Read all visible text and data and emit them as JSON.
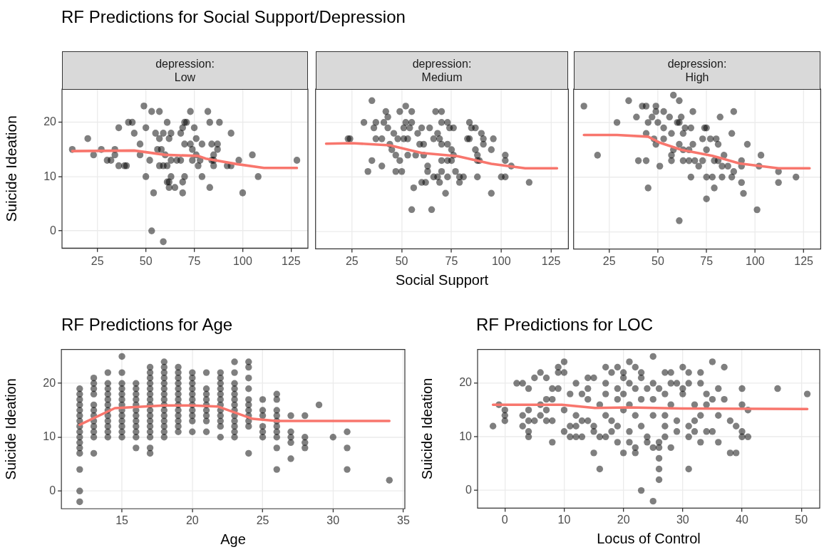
{
  "chart_data": [
    {
      "type": "scatter",
      "title": "RF Predictions for Social Support/Depression",
      "subtitle": "depression:\nLow",
      "ylabel": "Suicide Ideation",
      "xlim": [
        6.7,
        133.7
      ],
      "xticks": [
        25,
        50,
        75,
        100,
        125
      ],
      "ylim": [
        -3.2,
        26.1
      ],
      "yticks": [
        0,
        10,
        20
      ],
      "grid": true,
      "series": [
        {
          "type": "scatter",
          "marker": "circle",
          "color": "#000000",
          "x": [
            12,
            20,
            23,
            27,
            30,
            32,
            34,
            34,
            36,
            36,
            39,
            40,
            41,
            43,
            44,
            47,
            47,
            49,
            50,
            50,
            53,
            57,
            52,
            54,
            53,
            59,
            55,
            57,
            59,
            61,
            62,
            63,
            57,
            59,
            61,
            61,
            62,
            63,
            62,
            65,
            56,
            58,
            60,
            63,
            66,
            69,
            70,
            71,
            68,
            69,
            69,
            70,
            73,
            75,
            73,
            74,
            76,
            76,
            77,
            74,
            82,
            83,
            79,
            79,
            83,
            84,
            87,
            87,
            85,
            84,
            85,
            88,
            94,
            92,
            94,
            98,
            100,
            105,
            108,
            128,
            85,
            78,
            68,
            70
          ],
          "values": [
            15,
            17,
            14,
            15,
            13,
            13,
            15,
            14,
            19,
            12,
            12,
            12,
            20,
            20,
            18,
            14,
            16,
            23,
            19,
            10,
            22,
            22,
            13,
            7,
            0,
            -2,
            18,
            17,
            18,
            20,
            17,
            18,
            12,
            12,
            12,
            9,
            9,
            10,
            8,
            8,
            15,
            15,
            14,
            13,
            13,
            19,
            20,
            20,
            18,
            9,
            7,
            10,
            22,
            19,
            16,
            15,
            14,
            17,
            12,
            13,
            22,
            20,
            16,
            10,
            8,
            16,
            16,
            15,
            14,
            13,
            12,
            20,
            18,
            12,
            12,
            13,
            7,
            14,
            10,
            13,
            13,
            13,
            13,
            16
          ]
        },
        {
          "type": "line",
          "color": "#f8766d",
          "x": [
            12,
            44,
            50,
            60,
            77,
            81,
            97,
            111,
            128
          ],
          "values": [
            14.7,
            14.8,
            14.5,
            14,
            13.8,
            13.3,
            12.3,
            11.6,
            11.6
          ]
        }
      ]
    },
    {
      "type": "scatter",
      "subtitle": "depression:\nMedium",
      "xlabel": "Social Support",
      "xlim": [
        6.7,
        133.7
      ],
      "xticks": [
        25,
        50,
        75,
        100,
        125
      ],
      "ylim": [
        -3.2,
        26.1
      ],
      "yticks": [
        0,
        10,
        20
      ],
      "tick_labels": "x",
      "grid": true,
      "series": [
        {
          "type": "scatter",
          "marker": "circle",
          "color": "#000000",
          "x": [
            35,
            52,
            42,
            49,
            55,
            67,
            70,
            31,
            37,
            41,
            43,
            36,
            43,
            46,
            52,
            55,
            51,
            54,
            60,
            58,
            24,
            23,
            37,
            40,
            48,
            51,
            53,
            44,
            45,
            47,
            59,
            61,
            53,
            57,
            61,
            35,
            40,
            33,
            47,
            50,
            49,
            64,
            68,
            66,
            70,
            73,
            76,
            74,
            69,
            70,
            73,
            75,
            76,
            75,
            73,
            70,
            63,
            63,
            66,
            68,
            69,
            70,
            73,
            72,
            60,
            62,
            56,
            55,
            65,
            79,
            77,
            79,
            81,
            84,
            87,
            85,
            83,
            84,
            90,
            91,
            91,
            87,
            88,
            88,
            89,
            88,
            96,
            95,
            95,
            102,
            102,
            100,
            102,
            105,
            114
          ],
          "values": [
            24,
            23,
            22,
            22,
            22,
            22,
            22,
            20,
            20,
            20,
            21,
            19,
            19,
            18,
            20,
            20,
            19,
            19,
            19,
            18,
            17,
            17,
            17,
            17,
            17,
            17,
            17,
            16,
            15,
            14,
            16,
            16,
            14,
            14,
            14,
            13,
            12,
            11,
            11,
            11,
            13,
            19,
            18,
            17,
            20,
            20,
            19,
            19,
            17,
            16,
            16,
            15,
            14,
            13,
            13,
            13,
            12,
            11,
            10,
            10,
            9,
            11,
            10,
            7,
            9,
            9,
            8,
            4,
            4,
            9,
            11,
            10,
            10,
            20,
            19,
            19,
            17,
            17,
            18,
            17,
            16,
            15,
            14,
            13,
            13,
            10,
            17,
            15,
            7,
            14,
            13,
            10,
            10,
            12,
            9
          ]
        },
        {
          "type": "line",
          "color": "#f8766d",
          "x": [
            12,
            25,
            44,
            60,
            78,
            95,
            112,
            128
          ],
          "values": [
            16.1,
            16.2,
            15.8,
            14.4,
            13.8,
            12.4,
            11.6,
            11.6
          ]
        }
      ]
    },
    {
      "type": "scatter",
      "subtitle": "depression:\nHigh",
      "xlim": [
        6.7,
        133.7
      ],
      "xticks": [
        25,
        50,
        75,
        100,
        125
      ],
      "ylim": [
        -3.2,
        26.1
      ],
      "yticks": [
        0,
        10,
        20
      ],
      "tick_labels": "x",
      "grid": true,
      "series": [
        {
          "type": "scatter",
          "marker": "circle",
          "color": "#000000",
          "x": [
            12,
            35,
            58,
            61,
            42,
            44,
            49,
            49,
            53,
            68,
            89,
            39,
            47,
            56,
            62,
            82,
            29,
            45,
            50,
            60,
            61,
            53,
            64,
            67,
            74,
            75,
            44,
            57,
            63,
            88,
            48,
            53,
            73,
            77,
            80,
            49,
            61,
            68,
            81,
            96,
            58,
            63,
            75,
            66,
            19,
            57,
            84,
            103,
            40,
            44,
            57,
            63,
            66,
            69,
            73,
            79,
            81,
            93,
            51,
            71,
            83,
            86,
            93,
            102,
            89,
            112,
            67,
            75,
            78,
            83,
            88,
            121,
            93,
            112,
            45,
            79,
            94,
            75,
            101,
            61
          ],
          "values": [
            23,
            24,
            25,
            24,
            23,
            23,
            23,
            22,
            22,
            22,
            22,
            21,
            21,
            21,
            21,
            21,
            20,
            20,
            20,
            20,
            20,
            19,
            19,
            19,
            19,
            19,
            18,
            18,
            18,
            18,
            17,
            17,
            17,
            17,
            17,
            16,
            16,
            16,
            16,
            16,
            15,
            15,
            15,
            15,
            14,
            14,
            14,
            14,
            13,
            13,
            13,
            13,
            13,
            13,
            13,
            13,
            13,
            13,
            12,
            12,
            12,
            12,
            12,
            12,
            11,
            11,
            10,
            10,
            10,
            10,
            10,
            10,
            9,
            9,
            8,
            8,
            7,
            6,
            4,
            2
          ]
        },
        {
          "type": "line",
          "color": "#f8766d",
          "x": [
            12,
            29,
            45,
            51,
            62,
            78,
            92,
            112,
            128
          ],
          "values": [
            17.7,
            17.7,
            17.4,
            16.3,
            15,
            13.9,
            12.5,
            11.6,
            11.6
          ]
        }
      ]
    },
    {
      "type": "scatter",
      "title": "RF Predictions for Age",
      "xlabel": "Age",
      "ylabel": "Suicide Ideation",
      "xlim": [
        10.7,
        35.1
      ],
      "xticks": [
        15,
        20,
        25,
        30,
        35
      ],
      "ylim": [
        -3.3,
        26.3
      ],
      "yticks": [
        0,
        10,
        20
      ],
      "grid": true,
      "series": [
        {
          "type": "scatter",
          "marker": "circle",
          "color": "#000000",
          "x": [
            12,
            12,
            12,
            12,
            12,
            12,
            12,
            12,
            12,
            12,
            12,
            12,
            12,
            12,
            12,
            12,
            13,
            13,
            13,
            13,
            13,
            13,
            13,
            13,
            13,
            13,
            13,
            13,
            14,
            14,
            14,
            14,
            14,
            14,
            14,
            14,
            14,
            14,
            14,
            14,
            15,
            15,
            15,
            15,
            15,
            15,
            15,
            15,
            15,
            15,
            15,
            15,
            15,
            16,
            16,
            16,
            16,
            16,
            16,
            16,
            16,
            16,
            16,
            16,
            16,
            17,
            17,
            17,
            17,
            17,
            17,
            17,
            17,
            17,
            17,
            17,
            17,
            17,
            17,
            17,
            17,
            18,
            18,
            18,
            18,
            18,
            18,
            18,
            18,
            18,
            18,
            18,
            18,
            18,
            18,
            18,
            19,
            19,
            19,
            19,
            19,
            19,
            19,
            19,
            19,
            19,
            19,
            19,
            19,
            20,
            20,
            20,
            20,
            20,
            20,
            20,
            20,
            20,
            20,
            20,
            21,
            21,
            21,
            21,
            21,
            21,
            21,
            21,
            21,
            22,
            22,
            22,
            22,
            22,
            22,
            22,
            22,
            22,
            22,
            22,
            22,
            23,
            23,
            23,
            23,
            23,
            23,
            23,
            23,
            23,
            23,
            23,
            23,
            23,
            24,
            24,
            24,
            24,
            24,
            24,
            24,
            24,
            24,
            24,
            24,
            25,
            25,
            25,
            25,
            25,
            25,
            26,
            26,
            26,
            26,
            26,
            26,
            26,
            26,
            26,
            26,
            27,
            27,
            27,
            27,
            27,
            28,
            28,
            28,
            28,
            29,
            30,
            31,
            31,
            31,
            34
          ],
          "values": [
            19,
            18,
            17,
            16,
            15,
            14,
            13,
            12,
            11,
            10,
            9,
            8,
            7,
            4,
            0,
            -2,
            21,
            20,
            19,
            18,
            16,
            15,
            14,
            13,
            12,
            11,
            10,
            7,
            22,
            20,
            19,
            18,
            17,
            16,
            15,
            14,
            13,
            12,
            11,
            10,
            25,
            22,
            20,
            19,
            18,
            17,
            16,
            15,
            14,
            13,
            12,
            11,
            10,
            20,
            19,
            18,
            17,
            16,
            15,
            14,
            13,
            12,
            11,
            10,
            8,
            23,
            22,
            21,
            20,
            19,
            18,
            17,
            16,
            15,
            14,
            13,
            12,
            11,
            10,
            8,
            7,
            24,
            23,
            22,
            21,
            20,
            19,
            18,
            17,
            16,
            15,
            14,
            13,
            12,
            11,
            10,
            23,
            22,
            21,
            20,
            19,
            18,
            17,
            16,
            15,
            14,
            13,
            12,
            11,
            22,
            21,
            20,
            19,
            18,
            17,
            16,
            15,
            14,
            13,
            11,
            22,
            19,
            18,
            17,
            16,
            15,
            14,
            13,
            11,
            22,
            21,
            20,
            19,
            18,
            17,
            16,
            15,
            14,
            13,
            12,
            10,
            24,
            22,
            20,
            19,
            18,
            17,
            16,
            15,
            14,
            13,
            12,
            11,
            10,
            24,
            23,
            21,
            19,
            17,
            16,
            15,
            14,
            13,
            12,
            7,
            17,
            15,
            14,
            12,
            11,
            10,
            18,
            17,
            15,
            14,
            13,
            12,
            11,
            10,
            8,
            4,
            14,
            11,
            10,
            9,
            6,
            14,
            10,
            9,
            8,
            16,
            10,
            11,
            8,
            4,
            2
          ]
        },
        {
          "type": "line",
          "color": "#f8766d",
          "x": [
            12,
            14.5,
            18,
            20,
            21.8,
            24.3,
            26,
            34
          ],
          "values": [
            12.3,
            15.4,
            15.9,
            15.9,
            15.7,
            13.4,
            13,
            13
          ]
        }
      ]
    },
    {
      "type": "scatter",
      "title": "RF Predictions for LOC",
      "xlabel": "Locus of Control",
      "ylabel": "Suicide Ideation",
      "xlim": [
        -4.6,
        53.1
      ],
      "xticks": [
        0,
        10,
        20,
        30,
        40,
        50
      ],
      "ylim": [
        -3.3,
        26.3
      ],
      "yticks": [
        0,
        10,
        20
      ],
      "grid": true,
      "series": [
        {
          "type": "scatter",
          "marker": "circle",
          "color": "#000000",
          "x": [
            -2,
            -1,
            0,
            0,
            0,
            2,
            3,
            3,
            3,
            4,
            4,
            4,
            4,
            4,
            5,
            5,
            6,
            6,
            6,
            7,
            7,
            7,
            7,
            8,
            8,
            8,
            8,
            9,
            9,
            9,
            10,
            10,
            10,
            10,
            11,
            11,
            11,
            12,
            12,
            12,
            12,
            13,
            13,
            13,
            14,
            14,
            14,
            14,
            15,
            15,
            15,
            15,
            16,
            16,
            16,
            17,
            17,
            17,
            17,
            17,
            18,
            18,
            18,
            19,
            19,
            19,
            19,
            19,
            20,
            20,
            20,
            20,
            20,
            21,
            21,
            21,
            21,
            21,
            22,
            22,
            22,
            22,
            22,
            23,
            23,
            23,
            23,
            23,
            24,
            24,
            24,
            25,
            25,
            25,
            25,
            25,
            25,
            26,
            26,
            26,
            26,
            26,
            26,
            27,
            27,
            27,
            27,
            27,
            28,
            28,
            28,
            28,
            29,
            29,
            29,
            30,
            30,
            30,
            31,
            31,
            31,
            31,
            31,
            32,
            32,
            32,
            33,
            33,
            33,
            33,
            34,
            34,
            34,
            35,
            35,
            35,
            36,
            36,
            36,
            37,
            37,
            38,
            38,
            39,
            39,
            40,
            40,
            40,
            40,
            41,
            41,
            46,
            51
          ],
          "values": [
            12,
            16,
            15,
            14,
            13,
            20,
            20,
            12,
            14,
            19,
            11,
            10,
            15,
            13,
            21,
            13,
            22,
            16,
            14,
            21,
            15,
            13,
            17,
            19,
            17,
            13,
            9,
            19,
            23,
            22,
            24,
            22,
            11,
            15,
            18,
            12,
            10,
            20,
            12,
            10,
            14,
            10,
            13,
            18,
            21,
            19,
            17,
            13,
            21,
            12,
            11,
            7,
            4,
            10,
            16,
            23,
            20,
            18,
            14,
            10,
            22,
            13,
            11,
            23,
            19,
            17,
            12,
            9,
            22,
            21,
            7,
            15,
            18,
            24,
            20,
            16,
            11,
            9,
            23,
            19,
            14,
            8,
            7,
            22,
            21,
            17,
            12,
            0,
            19,
            10,
            9,
            25,
            20,
            17,
            14,
            8,
            -2,
            19,
            8,
            6,
            4,
            2,
            9,
            22,
            18,
            14,
            10,
            12,
            22,
            20,
            16,
            8,
            20,
            11,
            13,
            23,
            18,
            19,
            22,
            20,
            10,
            4,
            12,
            16,
            13,
            11,
            22,
            20,
            9,
            14,
            18,
            11,
            16,
            24,
            17,
            11,
            19,
            14,
            9,
            23,
            17,
            13,
            7,
            12,
            7,
            19,
            16,
            11,
            10,
            15,
            10,
            19,
            18
          ]
        },
        {
          "type": "line",
          "color": "#f8766d",
          "x": [
            -2,
            9.6,
            15.2,
            21,
            29.8,
            51
          ],
          "values": [
            16,
            16,
            15.4,
            15.5,
            15.3,
            15.2
          ]
        }
      ]
    }
  ]
}
